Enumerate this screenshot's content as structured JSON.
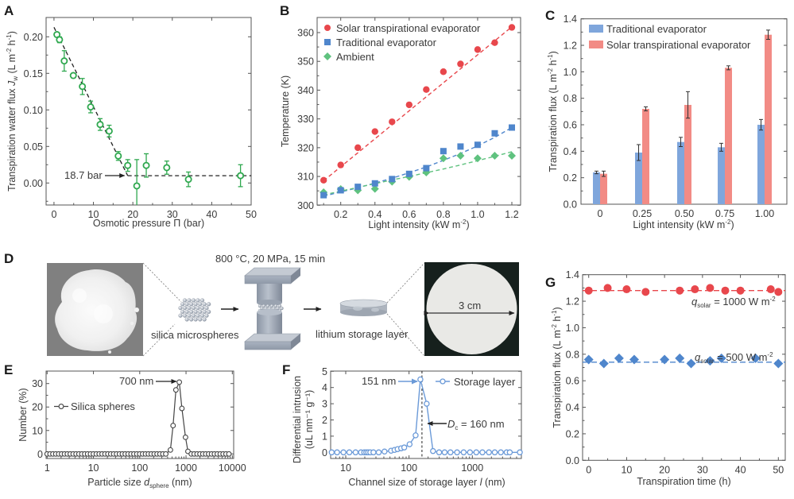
{
  "panels": {
    "A": "A",
    "B": "B",
    "C": "C",
    "D": "D",
    "E": "E",
    "F": "F",
    "G": "G"
  },
  "colors": {
    "green_open": "#2fa84f",
    "red": "#e8474c",
    "blue": "#4f86cc",
    "green": "#5fc27f",
    "bar_blue": "#7fa6dc",
    "bar_red": "#f28b85",
    "psd_gray": "#444444",
    "storage_blue": "#6b9ad8"
  },
  "schematic": {
    "press_conditions": "800 °C, 20 MPa, 15 min",
    "microspheres_label": "silica microspheres",
    "storage_layer_label": "lithium storage layer",
    "disk_scale_label": "3 cm"
  },
  "chart_data": [
    {
      "id": "A",
      "type": "scatter",
      "title": "",
      "xlabel": "Osmotic pressure Π (bar)",
      "ylabel": "Transpiration water flux Jw (L m⁻² h⁻¹)",
      "xlim": [
        -2,
        50
      ],
      "ylim": [
        -0.03,
        0.225
      ],
      "xticks": [
        0,
        10,
        20,
        30,
        40,
        50
      ],
      "yticks": [
        0.0,
        0.05,
        0.1,
        0.15,
        0.2
      ],
      "ytick_labels": [
        "0.00",
        "0.05",
        "0.10",
        "0.15",
        "0.20"
      ],
      "grid": false,
      "series": [
        {
          "name": "Transpiration water flux",
          "marker": "open-circle",
          "x": [
            0.75,
            1.4,
            2.6,
            4.9,
            7.2,
            9.3,
            11.7,
            14.0,
            16.3,
            18.7,
            21.0,
            23.4,
            28.6,
            34.1,
            47.3
          ],
          "y": [
            0.203,
            0.196,
            0.167,
            0.147,
            0.132,
            0.104,
            0.08,
            0.071,
            0.037,
            0.024,
            -0.004,
            0.024,
            0.021,
            0.005,
            0.01
          ],
          "err": [
            0.003,
            0.004,
            0.014,
            0.003,
            0.011,
            0.008,
            0.008,
            0.008,
            0.006,
            0.008,
            0.036,
            0.016,
            0.009,
            0.01,
            0.015
          ]
        }
      ],
      "fit_lines": [
        {
          "x": [
            0,
            18.7
          ],
          "y": [
            0.213,
            0.01
          ],
          "style": "dashed"
        },
        {
          "x": [
            18.7,
            50
          ],
          "y": [
            0.01,
            0.01
          ],
          "style": "dashed"
        }
      ],
      "annotations": [
        {
          "text": "18.7 bar",
          "x": 18.7,
          "y": 0.01,
          "arrow": true
        }
      ]
    },
    {
      "id": "B",
      "type": "scatter",
      "title": "",
      "xlabel": "Light intensity (kW m⁻²)",
      "ylabel": "Temperature (K)",
      "xlim": [
        0.05,
        1.23
      ],
      "ylim": [
        300,
        366
      ],
      "xticks": [
        0.2,
        0.4,
        0.6,
        0.8,
        1.0,
        1.2
      ],
      "xtick_labels": [
        "0.2",
        "0.4",
        "0.6",
        "0.8",
        "1.0",
        "1.2"
      ],
      "yticks": [
        300,
        310,
        320,
        330,
        340,
        350,
        360
      ],
      "grid": false,
      "legend_position": "top-left",
      "x": [
        0.1,
        0.2,
        0.3,
        0.4,
        0.5,
        0.6,
        0.7,
        0.8,
        0.9,
        1.0,
        1.1,
        1.2
      ],
      "series": [
        {
          "name": "Solar transpirational evaporator",
          "marker": "circle",
          "color_key": "red",
          "values": [
            308.7,
            314.0,
            320.0,
            325.6,
            329.0,
            334.9,
            340.2,
            346.4,
            349.1,
            354.1,
            356.5,
            361.8
          ],
          "fit": [
            308.5,
            362.0
          ]
        },
        {
          "name": "Traditional evaporator",
          "marker": "square",
          "color_key": "blue",
          "values": [
            303.5,
            305.2,
            306.4,
            307.6,
            309.1,
            310.9,
            312.9,
            318.8,
            320.4,
            321.0,
            325.0,
            327.0
          ],
          "fit_curve": [
            303.2,
            304.6,
            306.1,
            307.7,
            309.4,
            311.3,
            313.3,
            315.6,
            318.0,
            320.6,
            323.6,
            327.0
          ]
        },
        {
          "name": "Ambient",
          "marker": "diamond",
          "color_key": "green",
          "values": [
            304.5,
            305.6,
            305.2,
            305.7,
            308.2,
            309.9,
            311.4,
            316.3,
            317.2,
            316.3,
            317.2,
            317.2
          ],
          "fit_curve": [
            303.6,
            304.9,
            306.2,
            307.5,
            308.8,
            310.0,
            311.3,
            312.6,
            314.0,
            315.5,
            317.0,
            318.6
          ]
        }
      ]
    },
    {
      "id": "C",
      "type": "bar",
      "title": "",
      "xlabel": "Light intensity (kW m⁻²)",
      "ylabel": "Transpiration flux (L m⁻² h⁻¹)",
      "categories": [
        "0",
        "0.25",
        "0.50",
        "0.75",
        "1.00"
      ],
      "ylim": [
        0,
        1.4
      ],
      "yticks": [
        0.0,
        0.2,
        0.4,
        0.6,
        0.8,
        1.0,
        1.2,
        1.4
      ],
      "ytick_labels": [
        "0.0",
        "0.2",
        "0.4",
        "0.6",
        "0.8",
        "1.0",
        "1.2",
        "1.4"
      ],
      "grid": false,
      "legend_position": "top-left",
      "series": [
        {
          "name": "Traditional evaporator",
          "color_key": "bar_blue",
          "values": [
            0.24,
            0.39,
            0.47,
            0.43,
            0.6
          ],
          "err": [
            0.01,
            0.06,
            0.035,
            0.03,
            0.04
          ]
        },
        {
          "name": "Solar transpirational evaporator",
          "color_key": "bar_red",
          "values": [
            0.23,
            0.72,
            0.75,
            1.03,
            1.28
          ],
          "err": [
            0.02,
            0.015,
            0.1,
            0.015,
            0.035
          ]
        }
      ]
    },
    {
      "id": "E",
      "type": "line",
      "title": "",
      "xlabel": "Particle size d_sphere (nm)",
      "xlabel_main": "Particle size ",
      "xlabel_var": "d",
      "xlabel_sub": "sphere",
      "xlabel_unit": " (nm)",
      "ylabel": "Number (%)",
      "xscale": "log",
      "xlim": [
        1,
        10000
      ],
      "ylim": [
        -2,
        35
      ],
      "xticks": [
        1,
        10,
        100,
        1000,
        10000
      ],
      "xtick_labels": [
        "1",
        "10",
        "100",
        "1000",
        "10000"
      ],
      "yticks": [
        0,
        10,
        20,
        30
      ],
      "grid": false,
      "legend_position": "middle-left",
      "series": [
        {
          "name": "Silica spheres",
          "marker": "open-circle",
          "color_key": "psd_gray",
          "zero_range_low": [
            1,
            400
          ],
          "zero_range_high": [
            1300,
            9000
          ],
          "x": [
            460,
            525,
            605,
            716,
            815,
            975,
            1100
          ],
          "y": [
            1.7,
            12.1,
            27.3,
            30.6,
            19.4,
            7.1,
            1.1
          ]
        }
      ],
      "annotations": [
        {
          "text": "700 nm",
          "x": 700,
          "y": 30.6,
          "arrow": true
        }
      ]
    },
    {
      "id": "F",
      "type": "line",
      "title": "",
      "xlabel": "Channel size of storage layer l (nm)",
      "xlabel_main": "Channel size of storage layer ",
      "xlabel_var": "l",
      "xlabel_unit": " (nm)",
      "ylabel": "Differential intrusion (uL nm⁻¹ g⁻¹)",
      "ylabel_line1": "Differential intrusion",
      "ylabel_line2": "(uL nm⁻¹ g⁻¹)",
      "xscale": "log",
      "xlim": [
        6,
        5600
      ],
      "ylim": [
        -0.35,
        5
      ],
      "xticks": [
        10,
        100,
        1000
      ],
      "xtick_labels": [
        "10",
        "100",
        "1000"
      ],
      "yticks": [
        0,
        1,
        2,
        3,
        4,
        5
      ],
      "grid": false,
      "legend_position": "top-right",
      "series": [
        {
          "name": "Storage layer",
          "marker": "open-circle",
          "color_key": "storage_blue",
          "x": [
            6.0,
            7.3,
            9.2,
            11.4,
            14.3,
            17.4,
            19.6,
            21.1,
            22.6,
            24.4,
            27.4,
            33.2,
            41,
            52,
            59,
            66,
            75,
            84,
            102,
            127,
            151,
            190,
            239,
            299,
            365,
            451,
            574,
            729,
            917,
            1155,
            1442,
            1830,
            2260,
            2818,
            3479,
            3902,
            5623
          ],
          "y": [
            0,
            0,
            0,
            0,
            0,
            0,
            0,
            0,
            0,
            0,
            0,
            0,
            0.05,
            0.1,
            0.15,
            0.2,
            0.25,
            0.3,
            0.5,
            1.05,
            4.5,
            3.0,
            0.08,
            0,
            0,
            0,
            0,
            0,
            0,
            0,
            0,
            0,
            0,
            0,
            0,
            0,
            0
          ]
        }
      ],
      "vline": {
        "x": 160,
        "style": "dashed"
      },
      "annotations": [
        {
          "text": "151 nm",
          "x": 151,
          "y": 4.5,
          "arrow": true
        },
        {
          "text_var": "D",
          "text_sub": "c",
          "text_rest": " = 160 nm",
          "x": 160,
          "y": 1.8,
          "arrow": true
        }
      ]
    },
    {
      "id": "G",
      "type": "scatter",
      "title": "",
      "xlabel": "Transpiration time (h)",
      "ylabel": "Transpiration flux (L m⁻² h⁻¹)",
      "xlim": [
        -2,
        52
      ],
      "ylim": [
        0,
        1.4
      ],
      "xticks": [
        0,
        10,
        20,
        30,
        40,
        50
      ],
      "yticks": [
        0.0,
        0.2,
        0.4,
        0.6,
        0.8,
        1.0,
        1.2,
        1.4
      ],
      "ytick_labels": [
        "0.0",
        "0.2",
        "0.4",
        "0.6",
        "0.8",
        "1.0",
        "1.2",
        "1.4"
      ],
      "grid": false,
      "series": [
        {
          "name": "q_solar = 1000 W m⁻²",
          "label_var": "q",
          "label_sub": "solar",
          "label_rest": " = 1000 W m",
          "label_sup": "-2",
          "marker": "circle",
          "color_key": "red",
          "x": [
            0,
            5,
            10,
            15,
            24,
            28,
            32,
            36,
            40,
            48,
            50
          ],
          "y": [
            1.28,
            1.3,
            1.29,
            1.27,
            1.28,
            1.29,
            1.3,
            1.28,
            1.28,
            1.29,
            1.27
          ],
          "mean_line": 1.28
        },
        {
          "name": "q_solar = 500 W m⁻²",
          "label_var": "q",
          "label_sub": "solar",
          "label_rest": " = 500 W m",
          "label_sup": "-2",
          "marker": "diamond",
          "color_key": "blue",
          "x": [
            0,
            4,
            8,
            12,
            20,
            24,
            27,
            32,
            35,
            44,
            50
          ],
          "y": [
            0.76,
            0.73,
            0.77,
            0.76,
            0.76,
            0.77,
            0.73,
            0.75,
            0.77,
            0.77,
            0.73
          ],
          "mean_line": 0.74
        }
      ]
    }
  ]
}
